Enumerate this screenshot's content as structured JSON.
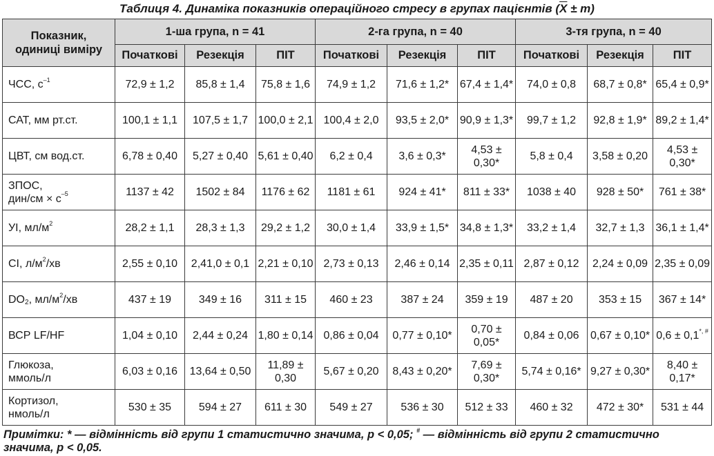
{
  "caption": {
    "prefix": "Таблиця 4.  Динаміка показників операційного стресу в групах пацієнтів (",
    "xbar": "X",
    "suffix": " ± m)"
  },
  "header": {
    "indicator_line1": "Показник,",
    "indicator_line2": "одиниці виміру",
    "groups": [
      "1-ша  група, n = 41",
      "2-га група, n = 40",
      "3-тя група, n = 40"
    ],
    "stages": [
      "Початкові",
      "Резекція",
      "ПІТ",
      "Початкові",
      "Резекція",
      "ПІТ",
      "Початкові",
      "Резекція",
      "ПІТ"
    ]
  },
  "rows": [
    {
      "label": "ЧСС, с",
      "label_sup": "–1",
      "label2": "",
      "label2_sup": "",
      "cells": [
        "72,9 ± 1,2",
        "85,8 ± 1,4",
        "75,8 ± 1,6",
        "74,9 ± 1,2",
        "71,6 ± 1,2*",
        "67,4 ± 1,4*",
        "74,0 ± 0,8",
        "68,7 ± 0,8*",
        "65,4 ± 0,9*"
      ]
    },
    {
      "label": "САТ, мм рт.ст.",
      "label_sup": "",
      "label2": "",
      "label2_sup": "",
      "cells": [
        "100,1 ± 1,1",
        "107,5 ± 1,7",
        "100,0 ± 2,1",
        "100,4 ± 2,0",
        "93,5 ± 2,0*",
        "90,9 ± 1,3*",
        "99,7 ± 1,2",
        "92,8 ± 1,9*",
        "89,2 ± 1,4*"
      ]
    },
    {
      "label": "ЦВТ, см вод.ст.",
      "label_sup": "",
      "label2": "",
      "label2_sup": "",
      "cells": [
        "6,78 ± 0,40",
        "5,27 ± 0,40",
        "5,61 ± 0,40",
        "6,2 ± 0,4",
        "3,6 ± 0,3*",
        "4,53 ± 0,30*",
        "5,8 ± 0,4",
        "3,58 ± 0,20",
        "4,53 ± 0,30*"
      ]
    },
    {
      "label": "ЗПОС,",
      "label_sup": "",
      "label2": "дин/см × с",
      "label2_sup": "–5",
      "cells": [
        "1137 ± 42",
        "1502 ± 84",
        "1176 ± 62",
        "1181 ± 61",
        "924 ± 41*",
        "811 ± 33*",
        "1038 ± 40",
        "928 ± 50*",
        "761 ± 38*"
      ]
    },
    {
      "label": "УІ, мл/м",
      "label_sup": "2",
      "label2": "",
      "label2_sup": "",
      "cells": [
        "28,2 ± 1,1",
        "28,3 ± 1,3",
        "29,2 ± 1,2",
        "30,0 ± 1,4",
        "33,9 ± 1,5*",
        "34,8 ± 1,3*",
        "33,2 ± 1,4",
        "32,7 ± 1,3",
        "36,1 ± 1,4*"
      ]
    },
    {
      "label": "СІ, л/м",
      "label_sup": "2",
      "label_tail": "/хв",
      "label2": "",
      "label2_sup": "",
      "cells": [
        "2,55 ± 0,10",
        "2,41,0 ± 0,1",
        "2,21 ± 0,10",
        "2,73 ± 0,13",
        "2,46 ± 0,14",
        "2,35 ± 0,11",
        "2,87 ± 0,12",
        "2,24 ± 0,09",
        "2,35 ± 0,09"
      ]
    },
    {
      "label": "DO",
      "label_sub": "2",
      "label_mid": ", мл/м",
      "label_sup": "2",
      "label_tail": "/хв",
      "label2": "",
      "label2_sup": "",
      "cells": [
        "437 ± 19",
        "349 ± 16",
        "311 ± 15",
        "460 ± 23",
        "387 ± 24",
        "359 ± 19",
        "487 ± 20",
        "353 ± 15",
        "367 ± 14*"
      ]
    },
    {
      "label": "ВСР LF/HF",
      "label_sup": "",
      "label2": "",
      "label2_sup": "",
      "cells": [
        "1,04 ± 0,10",
        "2,44 ± 0,24",
        "1,80 ± 0,14",
        "0,86 ± 0,04",
        "0,77 ± 0,10*",
        "0,70 ± 0,05*",
        "0,84 ± 0,06",
        "0,67 ± 0,10*",
        "0,6 ± 0,1"
      ],
      "last_sup": "*, #"
    },
    {
      "label": "Глюкоза,",
      "label_sup": "",
      "label2": "ммоль/л",
      "label2_sup": "",
      "cells": [
        "6,03 ± 0,16",
        "13,64 ± 0,50",
        "11,89 ± 0,30",
        "5,67 ± 0,20",
        "8,43 ± 0,20*",
        "7,69 ± 0,30*",
        "5,74 ± 0,16*",
        "9,27 ± 0,30*",
        "8,40 ± 0,17*"
      ]
    },
    {
      "label": "Кортизол,",
      "label_sup": "",
      "label2": "нмоль/л",
      "label2_sup": "",
      "cells": [
        "530 ± 35",
        "594 ± 27",
        "611 ± 30",
        "549 ± 27",
        "536 ± 30",
        "512 ± 33",
        "460 ± 32",
        "472 ± 30*",
        "531 ± 44"
      ]
    }
  ],
  "notes": {
    "part1": "Примітки:  * — відмінність від групи 1 статистично значима, p < 0,05; ",
    "hash": "#",
    "part2": " — відмінність від групи 2 статистично значима, p < 0,05."
  }
}
